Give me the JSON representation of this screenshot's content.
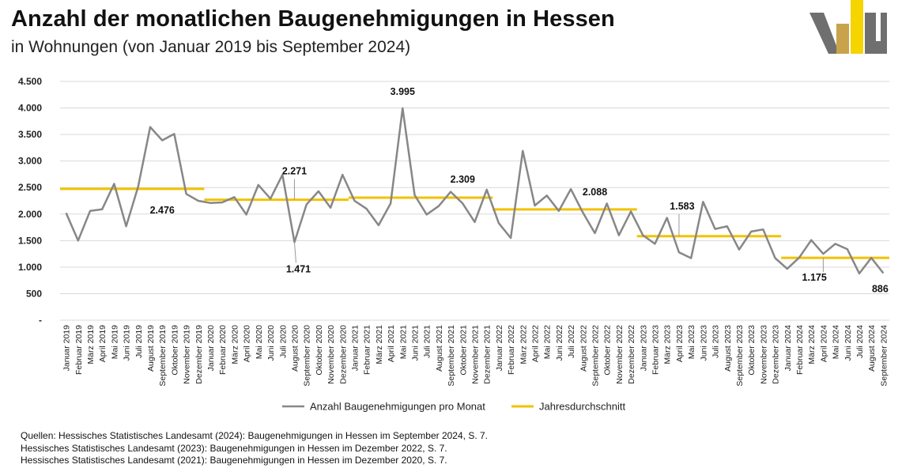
{
  "header": {
    "title": "Anzahl der monatlichen Baugenehmigungen in Hessen",
    "subtitle": "in Wohnungen (von Januar 2019 bis September 2024)"
  },
  "colors": {
    "series_line": "#878787",
    "average_line": "#f2c200",
    "grid": "#d9d9d9",
    "logo_gray": "#6f6f6f",
    "logo_gold": "#c9a24c",
    "logo_yellow": "#f5d400"
  },
  "chart_data": {
    "type": "line",
    "title": "Anzahl der monatlichen Baugenehmigungen in Hessen",
    "xlabel": "",
    "ylabel": "",
    "ylim": [
      0,
      4500
    ],
    "yticks": [
      0,
      500,
      1000,
      1500,
      2000,
      2500,
      3000,
      3500,
      4000,
      4500
    ],
    "ytick_labels": [
      "-",
      "500",
      "1.000",
      "1.500",
      "2.000",
      "2.500",
      "3.000",
      "3.500",
      "4.000",
      "4.500"
    ],
    "grid": true,
    "legend_position": "bottom",
    "categories": [
      "Januar 2019",
      "Februar 2019",
      "März 2019",
      "April 2019",
      "Mai 2019",
      "Juni 2019",
      "Juli 2019",
      "August 2019",
      "September 2019",
      "Oktober 2019",
      "November 2019",
      "Dezember 2019",
      "Januar 2020",
      "Februar 2020",
      "März 2020",
      "April 2020",
      "Mai 2020",
      "Juni 2020",
      "Juli 2020",
      "August 2020",
      "September 2020",
      "Oktober 2020",
      "November 2020",
      "Dezember 2020",
      "Januar 2021",
      "Februar 2021",
      "März 2021",
      "April 2021",
      "Mai 2021",
      "Juni 2021",
      "Juli 2021",
      "August 2021",
      "September 2021",
      "Oktober 2021",
      "November 2021",
      "Dezember 2021",
      "Januar 2022",
      "Februar 2022",
      "März 2022",
      "April 2022",
      "Mai 2022",
      "Juni 2022",
      "Juli 2022",
      "August 2022",
      "September 2022",
      "Oktober 2022",
      "November 2022",
      "Dezember 2022",
      "Januar 2023",
      "Februar 2023",
      "März 2023",
      "April 2023",
      "Mai 2023",
      "Juni 2023",
      "Juli 2023",
      "August 2023",
      "September 2023",
      "Oktober 2023",
      "November 2023",
      "Dezember 2023",
      "Januar 2024",
      "Februar 2024",
      "März 2024",
      "April 2024",
      "Mai 2024",
      "Juni 2024",
      "Juli 2024",
      "August 2024",
      "September 2024"
    ],
    "series": [
      {
        "name": "Anzahl Baugenehmigungen pro Monat",
        "values": [
          2020,
          1500,
          2060,
          2090,
          2570,
          1770,
          2520,
          3640,
          3390,
          3510,
          2380,
          2250,
          2210,
          2220,
          2320,
          1990,
          2550,
          2290,
          2740,
          1471,
          2180,
          2430,
          2120,
          2740,
          2250,
          2100,
          1790,
          2200,
          3995,
          2360,
          1990,
          2150,
          2420,
          2200,
          1850,
          2460,
          1830,
          1550,
          3190,
          2160,
          2350,
          2060,
          2470,
          2030,
          1640,
          2200,
          1600,
          2050,
          1600,
          1440,
          1930,
          1280,
          1170,
          2230,
          1720,
          1770,
          1330,
          1670,
          1710,
          1170,
          970,
          1180,
          1510,
          1250,
          1440,
          1340,
          880,
          1175,
          886
        ]
      }
    ],
    "averages": {
      "name": "Jahresdurchschnitt",
      "segments": [
        {
          "year": "2019",
          "value": 2476,
          "label": "2.476"
        },
        {
          "year": "2020",
          "value": 2271,
          "label": "2.271"
        },
        {
          "year": "2021",
          "value": 2309,
          "label": "2.309"
        },
        {
          "year": "2022",
          "value": 2088,
          "label": "2.088"
        },
        {
          "year": "2023",
          "value": 1583,
          "label": "1.583"
        },
        {
          "year": "2024",
          "value": 1175,
          "label": "1.175"
        }
      ]
    },
    "annotations": [
      {
        "index": 19,
        "label": "1.471"
      },
      {
        "index": 28,
        "label": "3.995"
      },
      {
        "index": 68,
        "label": "886"
      }
    ],
    "legend": [
      {
        "label": "Anzahl Baugenehmigungen pro Monat",
        "kind": "series"
      },
      {
        "label": "Jahresdurchschnitt",
        "kind": "average"
      }
    ]
  },
  "sources": [
    "Quellen: Hessisches Statistisches Landesamt (2024): Baugenehmigungen in Hessen im September 2024, S. 7.",
    "Hessisches Statistisches Landesamt (2023): Baugenehmigungen in Hessen im Dezember 2022, S. 7.",
    "Hessisches Statistisches Landesamt (2021): Baugenehmigungen in Hessen im Dezember 2020, S. 7."
  ]
}
